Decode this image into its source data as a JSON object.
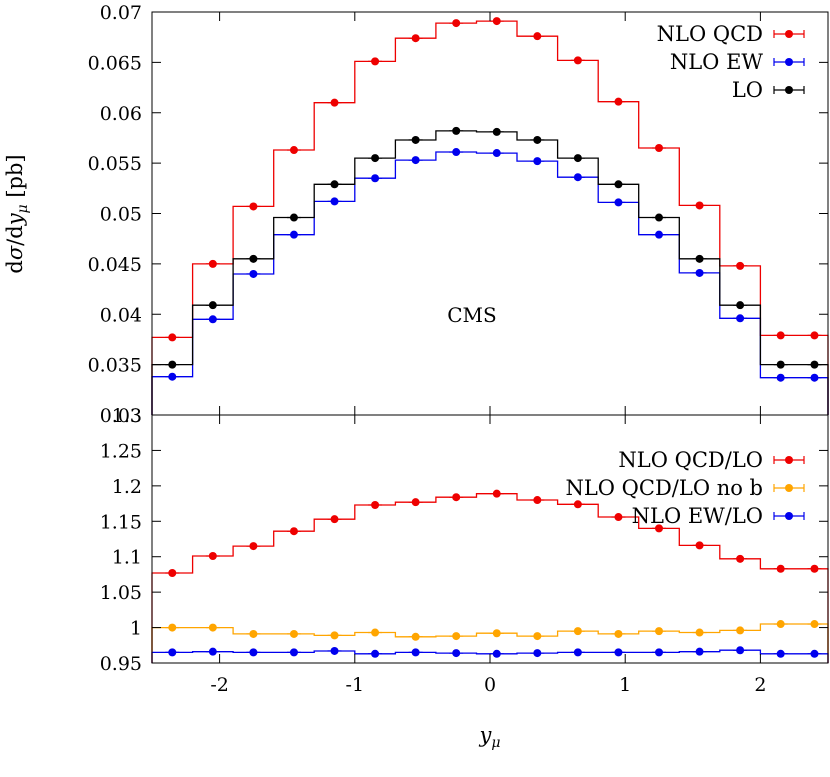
{
  "chart_data": [
    {
      "type": "line",
      "subtype": "histogram-step-with-points",
      "annotation": "CMS",
      "ylabel": "dσ/dy_μ [pb]",
      "xlim": [
        -2.5,
        2.5
      ],
      "ylim": [
        0.03,
        0.07
      ],
      "y_ticks": [
        "0.03",
        "0.035",
        "0.04",
        "0.045",
        "0.05",
        "0.055",
        "0.06",
        "0.065",
        "0.07"
      ],
      "legend_position": "top-right",
      "grid": false,
      "bin_edges": [
        -2.5,
        -2.2,
        -1.9,
        -1.6,
        -1.3,
        -1.0,
        -0.7,
        -0.4,
        -0.1,
        0.2,
        0.5,
        0.8,
        1.1,
        1.4,
        1.7,
        2.0,
        2.3,
        2.5
      ],
      "x": [
        -2.35,
        -2.05,
        -1.75,
        -1.45,
        -1.15,
        -0.85,
        -0.55,
        -0.25,
        0.05,
        0.35,
        0.65,
        0.95,
        1.25,
        1.55,
        1.85,
        2.15,
        2.4
      ],
      "series": [
        {
          "name": "NLO QCD",
          "color": "#ee0000",
          "values": [
            0.0377,
            0.045,
            0.0507,
            0.0563,
            0.061,
            0.0651,
            0.0674,
            0.0689,
            0.0691,
            0.0676,
            0.0652,
            0.0611,
            0.0565,
            0.0508,
            0.0448,
            0.0379,
            0.0379
          ]
        },
        {
          "name": "NLO EW",
          "color": "#0000ee",
          "values": [
            0.0338,
            0.0395,
            0.044,
            0.0479,
            0.0512,
            0.0535,
            0.0553,
            0.0561,
            0.056,
            0.0552,
            0.0536,
            0.0511,
            0.0479,
            0.0441,
            0.0396,
            0.0337,
            0.0337
          ]
        },
        {
          "name": "LO",
          "color": "#000000",
          "values": [
            0.035,
            0.0409,
            0.0455,
            0.0496,
            0.0529,
            0.0555,
            0.0573,
            0.0582,
            0.0581,
            0.0573,
            0.0555,
            0.0529,
            0.0496,
            0.0455,
            0.0409,
            0.035,
            0.035
          ]
        }
      ]
    },
    {
      "type": "line",
      "subtype": "histogram-step-with-points",
      "xlabel": "y_μ",
      "xlim": [
        -2.5,
        2.5
      ],
      "ylim": [
        0.95,
        1.3
      ],
      "x_ticks": [
        "-2",
        "-1",
        "0",
        "1",
        "2"
      ],
      "y_ticks": [
        "0.95",
        "1",
        "1.05",
        "1.1",
        "1.15",
        "1.2",
        "1.25",
        "1.3"
      ],
      "legend_position": "top-right",
      "grid": false,
      "bin_edges": [
        -2.5,
        -2.2,
        -1.9,
        -1.6,
        -1.3,
        -1.0,
        -0.7,
        -0.4,
        -0.1,
        0.2,
        0.5,
        0.8,
        1.1,
        1.4,
        1.7,
        2.0,
        2.3,
        2.5
      ],
      "x": [
        -2.35,
        -2.05,
        -1.75,
        -1.45,
        -1.15,
        -0.85,
        -0.55,
        -0.25,
        0.05,
        0.35,
        0.65,
        0.95,
        1.25,
        1.55,
        1.85,
        2.15,
        2.4
      ],
      "series": [
        {
          "name": "NLO QCD/LO",
          "color": "#ee0000",
          "values": [
            1.077,
            1.101,
            1.115,
            1.136,
            1.153,
            1.173,
            1.177,
            1.184,
            1.189,
            1.18,
            1.174,
            1.156,
            1.14,
            1.116,
            1.097,
            1.083,
            1.083
          ]
        },
        {
          "name": "NLO QCD/LO no b",
          "color": "#ffa500",
          "values": [
            1.0,
            1.0,
            0.991,
            0.991,
            0.989,
            0.993,
            0.987,
            0.988,
            0.992,
            0.988,
            0.995,
            0.991,
            0.995,
            0.993,
            0.996,
            1.005,
            1.005
          ]
        },
        {
          "name": "NLO EW/LO",
          "color": "#0000ee",
          "values": [
            0.965,
            0.966,
            0.965,
            0.965,
            0.967,
            0.963,
            0.965,
            0.964,
            0.963,
            0.964,
            0.965,
            0.965,
            0.965,
            0.966,
            0.968,
            0.963,
            0.963
          ]
        }
      ]
    }
  ]
}
